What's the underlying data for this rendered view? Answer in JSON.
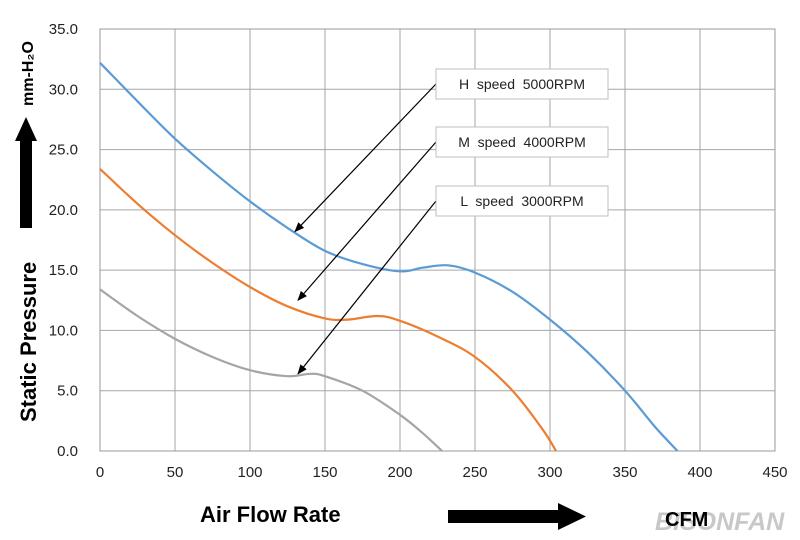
{
  "chart_data": {
    "type": "line",
    "title": "",
    "xlabel": "Air  Flow  Rate",
    "xunit": "CFM",
    "ylabel": "Static   Pressure",
    "yunit": "mm-H₂O",
    "xlim": [
      0,
      450
    ],
    "ylim": [
      0,
      35
    ],
    "xticks": [
      0,
      50,
      100,
      150,
      200,
      250,
      300,
      350,
      400,
      450
    ],
    "yticks": [
      "0.0",
      "5.0",
      "10.0",
      "15.0",
      "20.0",
      "25.0",
      "30.0",
      "35.0"
    ],
    "grid": true,
    "series": [
      {
        "name": "H  speed  5000RPM",
        "color": "#5b9bd5",
        "points": [
          [
            0,
            32.2
          ],
          [
            25,
            29.0
          ],
          [
            50,
            25.9
          ],
          [
            75,
            23.2
          ],
          [
            100,
            20.7
          ],
          [
            125,
            18.5
          ],
          [
            150,
            16.6
          ],
          [
            175,
            15.5
          ],
          [
            200,
            14.9
          ],
          [
            215,
            15.2
          ],
          [
            232,
            15.4
          ],
          [
            250,
            14.8
          ],
          [
            275,
            13.2
          ],
          [
            300,
            10.9
          ],
          [
            325,
            8.2
          ],
          [
            350,
            5.0
          ],
          [
            370,
            2.0
          ],
          [
            385,
            0.0
          ]
        ]
      },
      {
        "name": "M  speed  4000RPM",
        "color": "#ed7d31",
        "points": [
          [
            0,
            23.4
          ],
          [
            25,
            20.5
          ],
          [
            50,
            17.9
          ],
          [
            75,
            15.6
          ],
          [
            100,
            13.6
          ],
          [
            125,
            12.0
          ],
          [
            150,
            11.0
          ],
          [
            165,
            10.9
          ],
          [
            185,
            11.2
          ],
          [
            200,
            10.8
          ],
          [
            225,
            9.5
          ],
          [
            250,
            7.8
          ],
          [
            275,
            5.0
          ],
          [
            295,
            1.8
          ],
          [
            304,
            0.0
          ]
        ]
      },
      {
        "name": "L  speed  3000RPM",
        "color": "#a5a5a5",
        "points": [
          [
            0,
            13.4
          ],
          [
            25,
            11.2
          ],
          [
            50,
            9.3
          ],
          [
            75,
            7.8
          ],
          [
            100,
            6.7
          ],
          [
            125,
            6.2
          ],
          [
            140,
            6.4
          ],
          [
            150,
            6.2
          ],
          [
            175,
            5.0
          ],
          [
            200,
            3.0
          ],
          [
            215,
            1.5
          ],
          [
            228,
            0.0
          ]
        ]
      }
    ],
    "legend": [
      {
        "label": "H  speed  5000RPM",
        "arrow_to": [
          130,
          18.2
        ]
      },
      {
        "label": "M  speed  4000RPM",
        "arrow_to": [
          132,
          12.5
        ]
      },
      {
        "label": "L  speed  3000RPM",
        "arrow_to": [
          132,
          6.4
        ]
      }
    ],
    "watermark": "BISONFAN"
  }
}
